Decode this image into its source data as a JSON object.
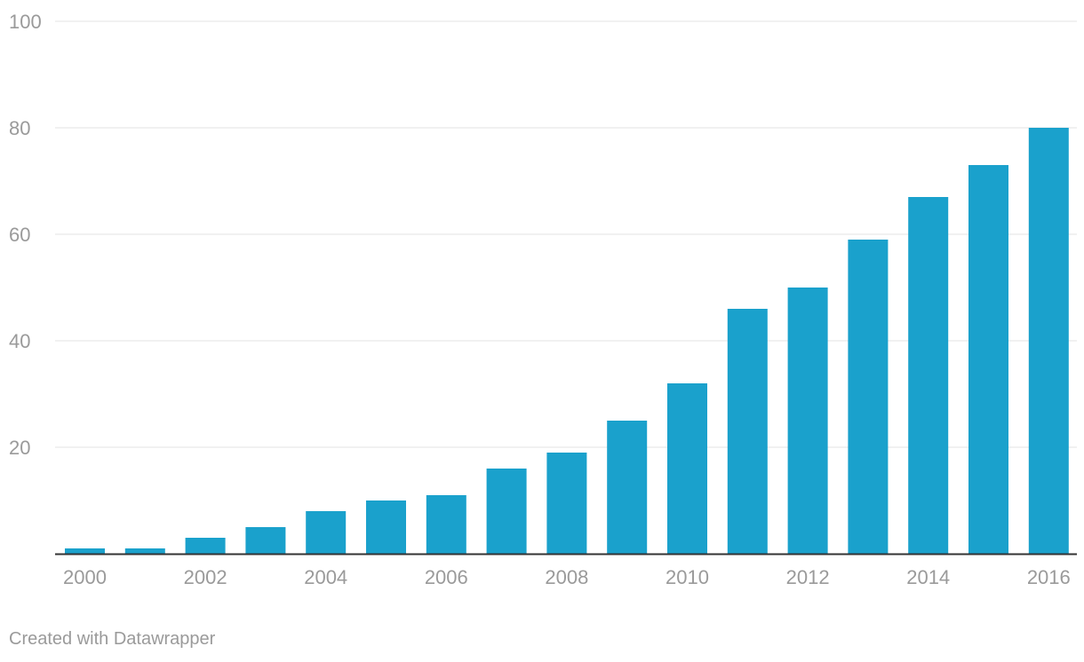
{
  "chart_data": {
    "type": "bar",
    "title": "",
    "xlabel": "",
    "ylabel": "",
    "categories": [
      "2000",
      "2001",
      "2002",
      "2003",
      "2004",
      "2005",
      "2006",
      "2007",
      "2008",
      "2009",
      "2010",
      "2011",
      "2012",
      "2013",
      "2014",
      "2015",
      "2016"
    ],
    "values": [
      1,
      1,
      3,
      5,
      8,
      10,
      11,
      16,
      19,
      25,
      32,
      46,
      50,
      59,
      67,
      73,
      80
    ],
    "ylim": [
      0,
      100
    ],
    "yticks": [
      "20",
      "40",
      "60",
      "80",
      "100"
    ],
    "xtick_labels": [
      "2000",
      "2002",
      "2004",
      "2006",
      "2008",
      "2010",
      "2012",
      "2014",
      "2016"
    ],
    "grid": true,
    "legend": "none",
    "bar_color": "#1aa1cc"
  },
  "footer": {
    "credit": "Created with Datawrapper"
  }
}
